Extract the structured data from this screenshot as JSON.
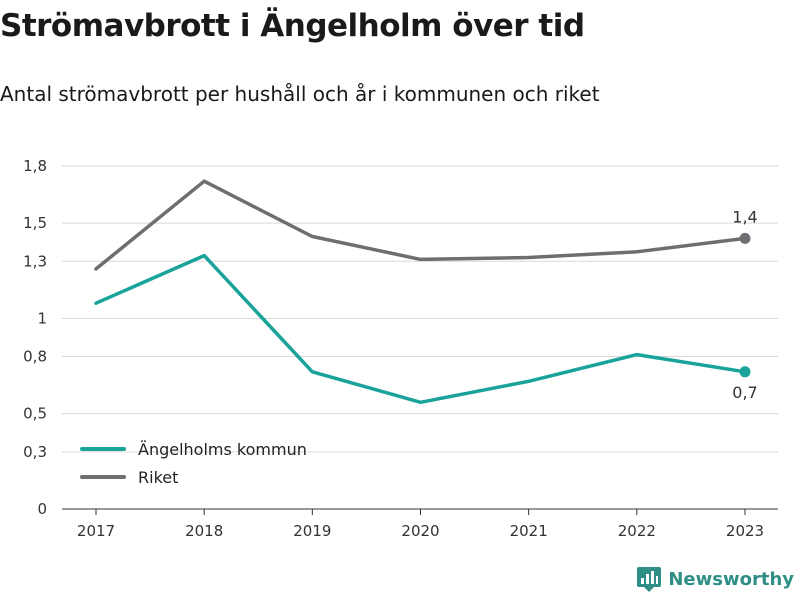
{
  "header": {
    "title": "Strömavbrott i Ängelholm över tid",
    "subtitle": "Antal strömavbrott per hushåll och år i kommunen och riket"
  },
  "brand": {
    "name": "Newsworthy",
    "icon": "newsworthy-logo-icon",
    "color": "#2f8f87"
  },
  "chart_data": {
    "type": "line",
    "x": [
      "2017",
      "2018",
      "2019",
      "2020",
      "2021",
      "2022",
      "2023"
    ],
    "ylim": [
      0,
      1.8
    ],
    "ytick_values": [
      0,
      0.3,
      0.5,
      0.8,
      1,
      1.3,
      1.5,
      1.8
    ],
    "ytick_labels": [
      "0",
      "0,3",
      "0,5",
      "0,8",
      "1",
      "1,3",
      "1,5",
      "1,8"
    ],
    "grid": true,
    "legend_position": "bottom-left",
    "series": [
      {
        "name": "Ängelholms kommun",
        "color": "#1aa39a",
        "values": [
          1.08,
          1.33,
          0.72,
          0.56,
          0.67,
          0.81,
          0.72
        ],
        "end_label": "0,7"
      },
      {
        "name": "Riket",
        "color": "#6d6d72",
        "values": [
          1.26,
          1.72,
          1.43,
          1.31,
          1.32,
          1.35,
          1.42
        ],
        "end_label": "1,4"
      }
    ]
  }
}
